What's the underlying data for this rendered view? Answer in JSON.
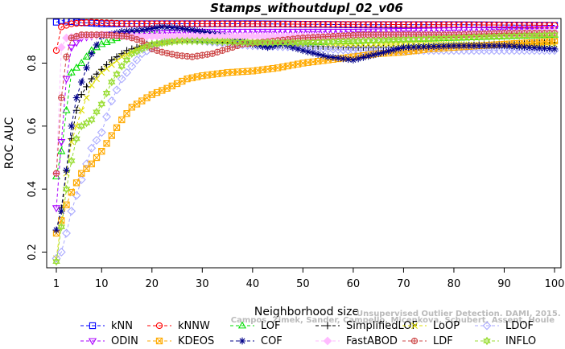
{
  "chart_data": {
    "type": "line",
    "title": "Stamps_withoutdupl_02_v06",
    "xlabel": "Neighborhood size",
    "ylabel": "ROC AUC",
    "xlim": [
      1,
      100
    ],
    "ylim": [
      0.15,
      0.95
    ],
    "x_ticks": [
      1,
      10,
      20,
      30,
      40,
      50,
      60,
      70,
      80,
      90,
      100
    ],
    "y_ticks": [
      0.2,
      0.4,
      0.6,
      0.8
    ],
    "x_tick_labels": [
      "1",
      "10",
      "20",
      "30",
      "40",
      "50",
      "60",
      "70",
      "80",
      "90",
      "100"
    ],
    "y_tick_labels": [
      "0.2",
      "0.4",
      "0.6",
      "0.8"
    ],
    "grid": false,
    "legend_position": "bottom",
    "watermark": "Campos, Zimek, Sander, Campello, Micenkova, Schubert, Assent, Houle",
    "watermark_prefix": "Unsupervised Outlier Detection. DAMI, 2015.",
    "series": [
      {
        "name": "kNN",
        "color": "#0000ff",
        "marker": "square",
        "anchors": [
          [
            1,
            0.93
          ],
          [
            2,
            0.935
          ],
          [
            5,
            0.93
          ],
          [
            10,
            0.925
          ],
          [
            20,
            0.925
          ],
          [
            40,
            0.925
          ],
          [
            60,
            0.922
          ],
          [
            80,
            0.922
          ],
          [
            100,
            0.92
          ]
        ]
      },
      {
        "name": "kNNW",
        "color": "#ff0000",
        "marker": "circle",
        "anchors": [
          [
            1,
            0.84
          ],
          [
            2,
            0.915
          ],
          [
            4,
            0.925
          ],
          [
            8,
            0.93
          ],
          [
            15,
            0.925
          ],
          [
            30,
            0.925
          ],
          [
            60,
            0.923
          ],
          [
            80,
            0.922
          ],
          [
            100,
            0.92
          ]
        ]
      },
      {
        "name": "LOF",
        "color": "#00dd00",
        "marker": "triangle",
        "anchors": [
          [
            1,
            0.44
          ],
          [
            2,
            0.52
          ],
          [
            3,
            0.65
          ],
          [
            4,
            0.77
          ],
          [
            6,
            0.8
          ],
          [
            8,
            0.84
          ],
          [
            10,
            0.86
          ],
          [
            14,
            0.885
          ],
          [
            20,
            0.89
          ],
          [
            26,
            0.88
          ],
          [
            30,
            0.875
          ],
          [
            40,
            0.865
          ],
          [
            50,
            0.865
          ],
          [
            60,
            0.87
          ],
          [
            70,
            0.875
          ],
          [
            80,
            0.88
          ],
          [
            90,
            0.885
          ],
          [
            100,
            0.89
          ]
        ]
      },
      {
        "name": "SimplifiedLOF",
        "color": "#000000",
        "marker": "plus",
        "anchors": [
          [
            1,
            0.27
          ],
          [
            2,
            0.34
          ],
          [
            3,
            0.46
          ],
          [
            4,
            0.56
          ],
          [
            5,
            0.65
          ],
          [
            6,
            0.7
          ],
          [
            8,
            0.75
          ],
          [
            10,
            0.78
          ],
          [
            12,
            0.81
          ],
          [
            15,
            0.84
          ],
          [
            20,
            0.865
          ],
          [
            25,
            0.875
          ],
          [
            30,
            0.87
          ],
          [
            40,
            0.86
          ],
          [
            50,
            0.855
          ],
          [
            60,
            0.85
          ],
          [
            70,
            0.85
          ],
          [
            80,
            0.855
          ],
          [
            90,
            0.86
          ],
          [
            100,
            0.865
          ]
        ]
      },
      {
        "name": "LoOP",
        "color": "#dddd00",
        "marker": "x",
        "anchors": [
          [
            1,
            0.18
          ],
          [
            2,
            0.3
          ],
          [
            3,
            0.45
          ],
          [
            4,
            0.55
          ],
          [
            6,
            0.65
          ],
          [
            8,
            0.73
          ],
          [
            10,
            0.77
          ],
          [
            14,
            0.82
          ],
          [
            18,
            0.85
          ],
          [
            24,
            0.87
          ],
          [
            30,
            0.875
          ],
          [
            40,
            0.865
          ],
          [
            50,
            0.86
          ],
          [
            60,
            0.86
          ],
          [
            70,
            0.86
          ],
          [
            80,
            0.86
          ],
          [
            90,
            0.855
          ],
          [
            100,
            0.86
          ]
        ]
      },
      {
        "name": "LDOF",
        "color": "#aaaaff",
        "marker": "diamond",
        "anchors": [
          [
            1,
            0.18
          ],
          [
            2,
            0.2
          ],
          [
            3,
            0.26
          ],
          [
            4,
            0.33
          ],
          [
            6,
            0.43
          ],
          [
            8,
            0.53
          ],
          [
            10,
            0.58
          ],
          [
            12,
            0.68
          ],
          [
            14,
            0.75
          ],
          [
            18,
            0.83
          ],
          [
            22,
            0.865
          ],
          [
            26,
            0.875
          ],
          [
            30,
            0.87
          ],
          [
            40,
            0.855
          ],
          [
            50,
            0.85
          ],
          [
            60,
            0.84
          ],
          [
            70,
            0.84
          ],
          [
            80,
            0.84
          ],
          [
            90,
            0.84
          ],
          [
            100,
            0.84
          ]
        ]
      },
      {
        "name": "ODIN",
        "color": "#aa00ff",
        "marker": "triangle-down",
        "anchors": [
          [
            1,
            0.34
          ],
          [
            2,
            0.55
          ],
          [
            3,
            0.75
          ],
          [
            4,
            0.85
          ],
          [
            6,
            0.88
          ],
          [
            10,
            0.89
          ],
          [
            20,
            0.895
          ],
          [
            30,
            0.9
          ],
          [
            40,
            0.9
          ],
          [
            60,
            0.9
          ],
          [
            80,
            0.905
          ],
          [
            100,
            0.91
          ]
        ]
      },
      {
        "name": "KDEOS",
        "color": "#ffaa00",
        "marker": "boxed-x",
        "anchors": [
          [
            1,
            0.26
          ],
          [
            2,
            0.3
          ],
          [
            3,
            0.35
          ],
          [
            4,
            0.39
          ],
          [
            5,
            0.42
          ],
          [
            6,
            0.45
          ],
          [
            8,
            0.48
          ],
          [
            10,
            0.52
          ],
          [
            12,
            0.57
          ],
          [
            14,
            0.62
          ],
          [
            16,
            0.66
          ],
          [
            18,
            0.68
          ],
          [
            20,
            0.7
          ],
          [
            23,
            0.72
          ],
          [
            27,
            0.75
          ],
          [
            30,
            0.76
          ],
          [
            35,
            0.77
          ],
          [
            40,
            0.775
          ],
          [
            45,
            0.785
          ],
          [
            50,
            0.8
          ],
          [
            55,
            0.81
          ],
          [
            60,
            0.82
          ],
          [
            65,
            0.83
          ],
          [
            70,
            0.835
          ],
          [
            75,
            0.845
          ],
          [
            80,
            0.85
          ],
          [
            85,
            0.855
          ],
          [
            90,
            0.86
          ],
          [
            95,
            0.865
          ],
          [
            100,
            0.87
          ]
        ]
      },
      {
        "name": "COF",
        "color": "#000088",
        "marker": "star",
        "anchors": [
          [
            1,
            0.27
          ],
          [
            2,
            0.33
          ],
          [
            3,
            0.46
          ],
          [
            4,
            0.6
          ],
          [
            5,
            0.69
          ],
          [
            6,
            0.74
          ],
          [
            8,
            0.83
          ],
          [
            10,
            0.885
          ],
          [
            14,
            0.9
          ],
          [
            18,
            0.905
          ],
          [
            22,
            0.915
          ],
          [
            26,
            0.91
          ],
          [
            30,
            0.9
          ],
          [
            35,
            0.885
          ],
          [
            40,
            0.86
          ],
          [
            43,
            0.85
          ],
          [
            46,
            0.86
          ],
          [
            50,
            0.84
          ],
          [
            55,
            0.82
          ],
          [
            60,
            0.81
          ],
          [
            65,
            0.83
          ],
          [
            70,
            0.85
          ],
          [
            80,
            0.855
          ],
          [
            90,
            0.855
          ],
          [
            100,
            0.845
          ]
        ]
      },
      {
        "name": "FastABOD",
        "color": "#ffbbff",
        "marker": "diamond-filled",
        "anchors": [
          [
            1,
            0.45
          ],
          [
            2,
            0.85
          ],
          [
            3,
            0.88
          ],
          [
            5,
            0.885
          ],
          [
            10,
            0.89
          ],
          [
            15,
            0.885
          ],
          [
            20,
            0.885
          ],
          [
            30,
            0.885
          ],
          [
            40,
            0.885
          ],
          [
            60,
            0.885
          ],
          [
            80,
            0.89
          ],
          [
            100,
            0.9
          ]
        ]
      },
      {
        "name": "LDF",
        "color": "#cc4444",
        "marker": "circle-plus",
        "anchors": [
          [
            1,
            0.45
          ],
          [
            2,
            0.69
          ],
          [
            3,
            0.82
          ],
          [
            4,
            0.88
          ],
          [
            6,
            0.89
          ],
          [
            10,
            0.89
          ],
          [
            15,
            0.885
          ],
          [
            18,
            0.87
          ],
          [
            20,
            0.845
          ],
          [
            22,
            0.835
          ],
          [
            25,
            0.825
          ],
          [
            28,
            0.82
          ],
          [
            32,
            0.83
          ],
          [
            38,
            0.86
          ],
          [
            44,
            0.87
          ],
          [
            50,
            0.88
          ],
          [
            56,
            0.885
          ],
          [
            62,
            0.89
          ],
          [
            70,
            0.89
          ],
          [
            80,
            0.89
          ],
          [
            90,
            0.895
          ],
          [
            100,
            0.895
          ]
        ]
      },
      {
        "name": "INFLO",
        "color": "#99dd33",
        "marker": "star-hex",
        "anchors": [
          [
            1,
            0.17
          ],
          [
            2,
            0.28
          ],
          [
            3,
            0.4
          ],
          [
            4,
            0.49
          ],
          [
            5,
            0.56
          ],
          [
            6,
            0.6
          ],
          [
            8,
            0.62
          ],
          [
            10,
            0.67
          ],
          [
            12,
            0.74
          ],
          [
            14,
            0.79
          ],
          [
            16,
            0.83
          ],
          [
            20,
            0.86
          ],
          [
            25,
            0.87
          ],
          [
            30,
            0.87
          ],
          [
            40,
            0.865
          ],
          [
            50,
            0.865
          ],
          [
            60,
            0.87
          ],
          [
            70,
            0.875
          ],
          [
            80,
            0.88
          ],
          [
            90,
            0.885
          ],
          [
            100,
            0.89
          ]
        ]
      }
    ]
  }
}
